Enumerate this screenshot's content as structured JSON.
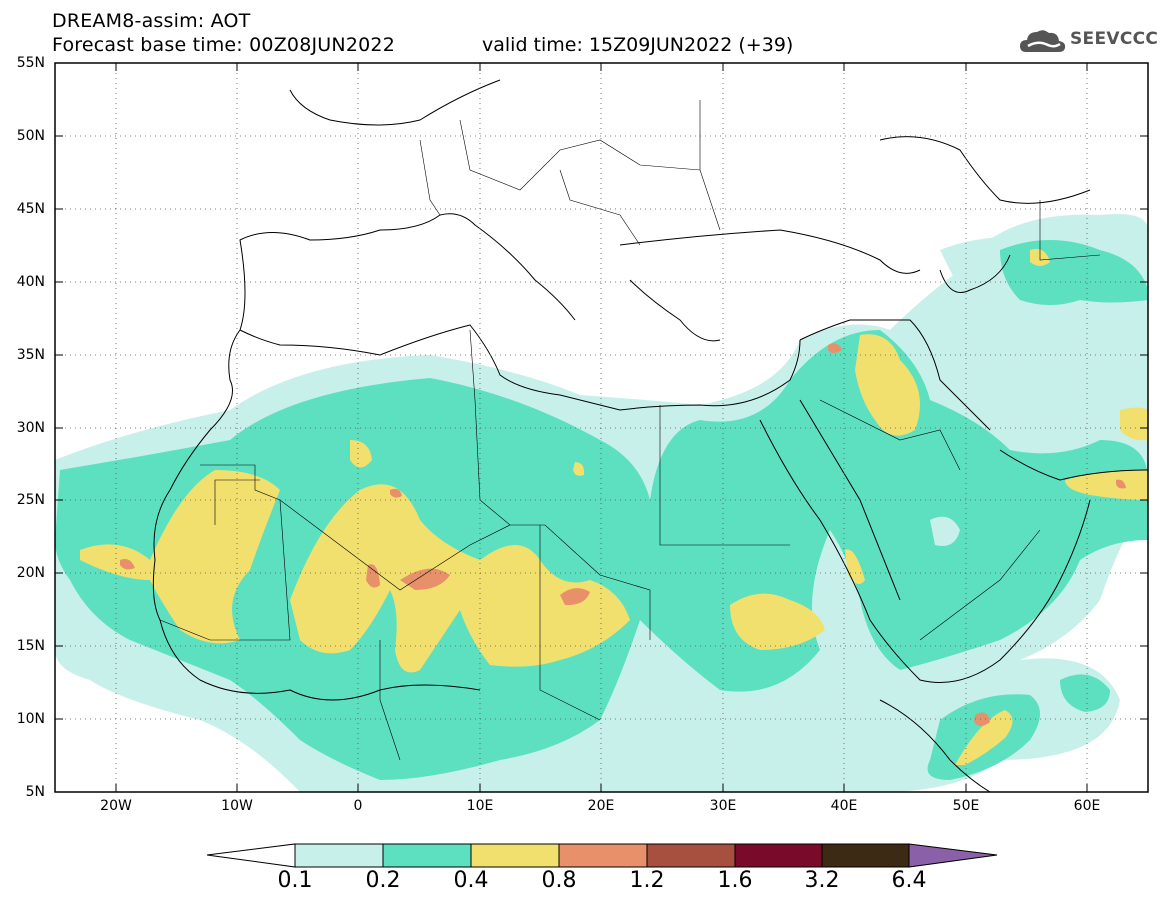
{
  "header": {
    "title_line1": "DREAM8-assim: AOT",
    "title_line2": "Forecast base time: 00Z08JUN2022",
    "valid_time": "valid time: 15Z09JUN2022 (+39)",
    "logo_text": "SEEVCCC"
  },
  "map": {
    "lat_range": [
      5,
      55
    ],
    "lon_range": [
      -25,
      65
    ],
    "lat_labels": [
      "55N",
      "50N",
      "45N",
      "40N",
      "35N",
      "30N",
      "25N",
      "20N",
      "15N",
      "10N",
      "5N"
    ],
    "lon_labels": [
      "20W",
      "10W",
      "0",
      "10E",
      "20E",
      "30E",
      "40E",
      "50E",
      "60E"
    ],
    "grid": "dotted"
  },
  "colorbar": {
    "levels": [
      "0.1",
      "0.2",
      "0.4",
      "0.8",
      "1.2",
      "1.6",
      "3.2",
      "6.4"
    ],
    "colors": [
      "#c8f0ea",
      "#5ce0c0",
      "#f2e06e",
      "#e8906a",
      "#a85040",
      "#7a0a2a",
      "#3c2a14",
      "#8a60a8"
    ],
    "under_color": "#ffffff",
    "over_color": "#8a60a8"
  }
}
